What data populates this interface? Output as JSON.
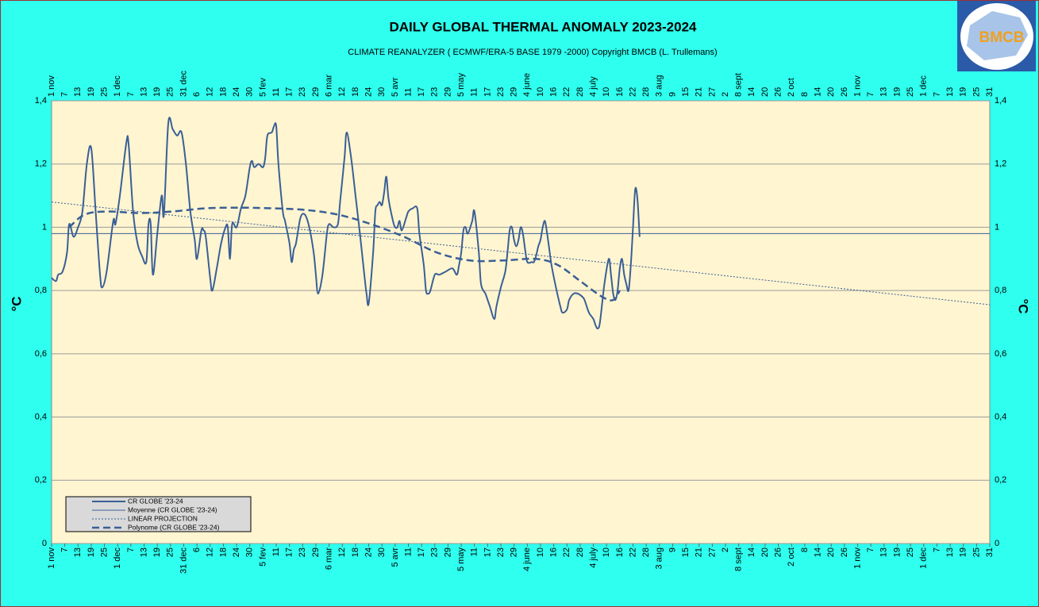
{
  "chart_data": {
    "type": "line",
    "title": "DAILY GLOBAL THERMAL ANOMALY 2023-2024",
    "subtitle": "CLIMATE REANALYZER ( ECMWF/ERA-5 BASE 1979 -2000)      Copyright BMCB (L. Trullemans)",
    "ylabel": "°C",
    "logo": "BMCB",
    "xlim": [
      0,
      426
    ],
    "ylim": [
      0,
      1.4
    ],
    "grid": true,
    "legend": "bottom-left",
    "yticks": [
      0,
      {
        "value": 0.2,
        "label": "0,2"
      },
      {
        "value": 0.4,
        "label": "0,4"
      },
      {
        "value": 0.6,
        "label": "0,6"
      },
      {
        "value": 0.8,
        "label": "0,8"
      },
      1,
      {
        "value": 1.2,
        "label": "1,2"
      },
      {
        "value": 1.4,
        "label": "1,4"
      }
    ],
    "xticks": [
      {
        "value": 0,
        "label": "1 nov"
      },
      {
        "value": 6,
        "label": "7"
      },
      {
        "value": 12,
        "label": "13"
      },
      {
        "value": 18,
        "label": "19"
      },
      {
        "value": 24,
        "label": "25"
      },
      {
        "value": 30,
        "label": "1 dec"
      },
      {
        "value": 36,
        "label": "7"
      },
      {
        "value": 42,
        "label": "13"
      },
      {
        "value": 48,
        "label": "19"
      },
      {
        "value": 54,
        "label": "25"
      },
      {
        "value": 60,
        "label": "31 dec"
      },
      {
        "value": 66,
        "label": "6"
      },
      {
        "value": 72,
        "label": "12"
      },
      {
        "value": 78,
        "label": "18"
      },
      {
        "value": 84,
        "label": "24"
      },
      {
        "value": 90,
        "label": "30"
      },
      {
        "value": 96,
        "label": "5 fev"
      },
      {
        "value": 102,
        "label": "11"
      },
      {
        "value": 108,
        "label": "17"
      },
      {
        "value": 114,
        "label": "23"
      },
      {
        "value": 120,
        "label": "29"
      },
      {
        "value": 126,
        "label": "6 mar"
      },
      {
        "value": 132,
        "label": "12"
      },
      {
        "value": 138,
        "label": "18"
      },
      {
        "value": 144,
        "label": "24"
      },
      {
        "value": 150,
        "label": "30"
      },
      {
        "value": 156,
        "label": "5 avr"
      },
      {
        "value": 162,
        "label": "11"
      },
      {
        "value": 168,
        "label": "17"
      },
      {
        "value": 174,
        "label": "23"
      },
      {
        "value": 180,
        "label": "29"
      },
      {
        "value": 186,
        "label": "5 may"
      },
      {
        "value": 192,
        "label": "11"
      },
      {
        "value": 198,
        "label": "17"
      },
      {
        "value": 204,
        "label": "23"
      },
      {
        "value": 210,
        "label": "29"
      },
      {
        "value": 216,
        "label": "4 june"
      },
      {
        "value": 222,
        "label": "10"
      },
      {
        "value": 228,
        "label": "16"
      },
      {
        "value": 234,
        "label": "22"
      },
      {
        "value": 240,
        "label": "28"
      },
      {
        "value": 246,
        "label": "4 july"
      },
      {
        "value": 252,
        "label": "10"
      },
      {
        "value": 258,
        "label": "16"
      },
      {
        "value": 264,
        "label": "22"
      },
      {
        "value": 270,
        "label": "28"
      },
      {
        "value": 276,
        "label": "3 aug"
      },
      {
        "value": 282,
        "label": "9"
      },
      {
        "value": 288,
        "label": "15"
      },
      {
        "value": 294,
        "label": "21"
      },
      {
        "value": 300,
        "label": "27"
      },
      {
        "value": 306,
        "label": "2"
      },
      {
        "value": 312,
        "label": "8 sept"
      },
      {
        "value": 318,
        "label": "14"
      },
      {
        "value": 324,
        "label": "20"
      },
      {
        "value": 330,
        "label": "26"
      },
      {
        "value": 336,
        "label": "2 oct"
      },
      {
        "value": 342,
        "label": "8"
      },
      {
        "value": 348,
        "label": "14"
      },
      {
        "value": 354,
        "label": "20"
      },
      {
        "value": 360,
        "label": "26"
      },
      {
        "value": 366,
        "label": "1 nov"
      },
      {
        "value": 372,
        "label": "7"
      },
      {
        "value": 378,
        "label": "13"
      },
      {
        "value": 384,
        "label": "19"
      },
      {
        "value": 390,
        "label": "25"
      },
      {
        "value": 396,
        "label": "1 dec"
      },
      {
        "value": 402,
        "label": "7"
      },
      {
        "value": 408,
        "label": "13"
      },
      {
        "value": 414,
        "label": "19"
      },
      {
        "value": 420,
        "label": "25"
      },
      {
        "value": 426,
        "label": "31"
      }
    ],
    "series": [
      {
        "name": "CR GLOBE '23-24",
        "color": "#3a5f96",
        "style": "solid",
        "width": 2,
        "x": [
          0,
          2,
          3,
          5,
          7,
          8,
          10,
          12,
          14,
          16,
          18,
          20,
          22,
          23,
          25,
          28,
          29,
          31,
          34,
          35,
          37,
          39,
          41,
          43,
          44,
          45,
          46,
          48,
          50,
          51,
          53,
          55,
          57,
          59,
          61,
          63,
          65,
          66,
          68,
          69,
          70,
          72,
          73,
          75,
          77,
          79,
          80,
          81,
          82,
          84,
          86,
          88,
          90,
          91,
          92,
          94,
          96,
          97,
          98,
          100,
          101,
          102,
          103,
          105,
          106,
          108,
          109,
          110,
          111,
          113,
          115,
          117,
          119,
          120,
          121,
          123,
          125,
          126,
          128,
          130,
          131,
          133,
          134,
          136,
          138,
          140,
          142,
          143,
          144,
          146,
          147,
          148,
          149,
          150,
          151,
          152,
          153,
          155,
          156,
          157,
          158,
          159,
          161,
          162,
          164,
          166,
          167,
          169,
          170,
          171,
          172,
          174,
          176,
          179,
          182,
          184,
          185,
          186,
          187,
          188,
          189,
          191,
          192,
          194,
          195,
          197,
          198,
          199,
          201,
          202,
          204,
          206,
          207,
          208,
          209,
          210,
          211,
          212,
          213,
          214,
          215,
          216,
          218,
          219,
          220,
          221,
          222,
          223,
          224,
          225,
          226,
          227,
          229,
          231,
          232,
          234,
          235,
          237,
          239,
          241,
          242,
          244,
          246,
          247,
          248,
          249,
          251,
          253,
          254,
          255,
          256,
          257,
          258,
          259,
          260,
          261,
          262,
          263,
          264,
          265,
          266,
          267
        ],
        "values": [
          0.84,
          0.83,
          0.85,
          0.86,
          0.92,
          1.01,
          0.97,
          1.0,
          1.05,
          1.2,
          1.25,
          1.05,
          0.85,
          0.81,
          0.86,
          1.02,
          1.01,
          1.1,
          1.27,
          1.26,
          1.05,
          0.95,
          0.91,
          0.89,
          1.01,
          1.01,
          0.85,
          0.98,
          1.1,
          1.04,
          1.33,
          1.31,
          1.29,
          1.3,
          1.2,
          1.05,
          0.96,
          0.9,
          0.99,
          0.99,
          0.97,
          0.84,
          0.8,
          0.87,
          0.95,
          1.0,
          1.0,
          0.9,
          1.01,
          1.0,
          1.06,
          1.1,
          1.19,
          1.21,
          1.19,
          1.2,
          1.19,
          1.22,
          1.29,
          1.3,
          1.32,
          1.32,
          1.2,
          1.05,
          1.02,
          0.95,
          0.89,
          0.93,
          0.95,
          1.03,
          1.04,
          1.0,
          0.92,
          0.85,
          0.79,
          0.85,
          0.98,
          1.01,
          1.0,
          1.01,
          1.08,
          1.22,
          1.3,
          1.22,
          1.1,
          0.98,
          0.85,
          0.79,
          0.76,
          0.92,
          1.05,
          1.07,
          1.08,
          1.07,
          1.11,
          1.16,
          1.09,
          1.02,
          1.0,
          1.0,
          1.02,
          0.99,
          1.03,
          1.05,
          1.06,
          1.06,
          0.98,
          0.88,
          0.8,
          0.79,
          0.8,
          0.85,
          0.85,
          0.86,
          0.87,
          0.85,
          0.88,
          0.92,
          0.99,
          1.0,
          0.98,
          1.02,
          1.05,
          0.92,
          0.82,
          0.79,
          0.77,
          0.75,
          0.71,
          0.75,
          0.81,
          0.86,
          0.92,
          0.99,
          1.0,
          0.96,
          0.94,
          0.96,
          1.0,
          0.98,
          0.93,
          0.89,
          0.89,
          0.89,
          0.91,
          0.94,
          0.96,
          1.0,
          1.02,
          0.98,
          0.93,
          0.88,
          0.81,
          0.75,
          0.73,
          0.74,
          0.77,
          0.79,
          0.79,
          0.78,
          0.77,
          0.73,
          0.71,
          0.69,
          0.68,
          0.7,
          0.82,
          0.9,
          0.85,
          0.79,
          0.77,
          0.8,
          0.87,
          0.9,
          0.85,
          0.82,
          0.8,
          0.88,
          1.0,
          1.12,
          1.09,
          0.97
        ]
      },
      {
        "name": "Moyenne (CR GLOBE '23-24)",
        "color": "#3a5f96",
        "style": "solid",
        "width": 1,
        "x": [
          0,
          426
        ],
        "values": [
          0.98,
          0.98
        ]
      },
      {
        "name": "LINEAR PROJECTION",
        "color": "#3a5f96",
        "style": "dotted",
        "width": 1,
        "x": [
          0,
          426
        ],
        "values": [
          1.08,
          0.755
        ]
      },
      {
        "name": "Polynome (CR GLOBE '23-24)",
        "color": "#3a5f96",
        "style": "dashed",
        "width": 2.5,
        "x": [
          8,
          15,
          25,
          40,
          55,
          70,
          85,
          100,
          115,
          130,
          145,
          160,
          175,
          190,
          205,
          220,
          230,
          240,
          250,
          255,
          258
        ],
        "values": [
          1.0,
          1.04,
          1.05,
          1.045,
          1.05,
          1.06,
          1.062,
          1.06,
          1.055,
          1.04,
          1.01,
          0.97,
          0.92,
          0.895,
          0.895,
          0.9,
          0.88,
          0.83,
          0.78,
          0.77,
          0.8
        ]
      }
    ]
  }
}
